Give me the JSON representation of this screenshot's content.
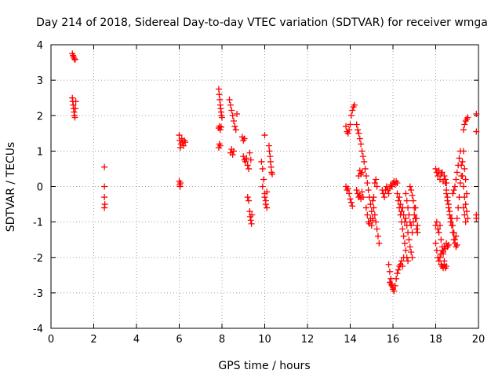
{
  "chart_data": {
    "type": "scatter",
    "title": "Day 214 of 2018, Sidereal Day-to-day VTEC variation (SDTVAR) for receiver wmga",
    "xlabel": "GPS time / hours",
    "ylabel": "SDTVAR / TECUs",
    "xlim": [
      0,
      20
    ],
    "ylim": [
      -4,
      4
    ],
    "xticks": [
      0,
      2,
      4,
      6,
      8,
      10,
      12,
      14,
      16,
      18,
      20
    ],
    "yticks": [
      -4,
      -3,
      -2,
      -1,
      0,
      1,
      2,
      3,
      4
    ],
    "grid": true,
    "marker": "+",
    "color": "#ff0000",
    "series": [
      {
        "name": "SDTVAR",
        "segments": [
          {
            "x": [
              1.0,
              1.03,
              1.06,
              1.1,
              1.13
            ],
            "y": [
              3.75,
              3.7,
              3.65,
              3.6,
              3.58
            ]
          },
          {
            "x": [
              1.0,
              1.02,
              1.04,
              1.06,
              1.08,
              1.1,
              1.12,
              1.14,
              1.16
            ],
            "y": [
              2.5,
              2.4,
              2.3,
              2.2,
              2.1,
              2.0,
              1.95,
              2.2,
              2.4
            ]
          },
          {
            "x": [
              2.5,
              2.5,
              2.5,
              2.52,
              2.5
            ],
            "y": [
              0.55,
              0.0,
              -0.3,
              -0.5,
              -0.6
            ]
          },
          {
            "x": [
              6.0,
              6.02,
              6.05,
              6.08,
              6.12,
              6.16,
              6.2,
              6.24,
              6.28
            ],
            "y": [
              1.45,
              1.3,
              1.1,
              1.2,
              1.35,
              1.25,
              1.15,
              1.3,
              1.25
            ]
          },
          {
            "x": [
              6.0,
              6.02,
              6.04,
              6.06
            ],
            "y": [
              0.15,
              0.05,
              0.0,
              0.1
            ]
          },
          {
            "x": [
              7.85,
              7.87,
              7.9,
              7.92,
              7.94,
              7.96,
              7.98,
              8.0
            ],
            "y": [
              2.75,
              2.6,
              2.45,
              2.3,
              2.2,
              2.1,
              2.0,
              1.95
            ]
          },
          {
            "x": [
              7.85,
              7.88,
              7.92,
              7.96
            ],
            "y": [
              1.65,
              1.7,
              1.6,
              1.68
            ]
          },
          {
            "x": [
              7.85,
              7.88,
              7.92
            ],
            "y": [
              1.1,
              1.2,
              1.15
            ]
          },
          {
            "x": [
              8.35,
              8.4,
              8.45,
              8.5,
              8.55,
              8.6,
              8.65,
              8.7
            ],
            "y": [
              2.45,
              2.3,
              2.15,
              2.0,
              1.85,
              1.7,
              1.6,
              2.05
            ]
          },
          {
            "x": [
              8.4,
              8.45,
              8.5,
              8.55
            ],
            "y": [
              0.95,
              1.05,
              0.9,
              1.0
            ]
          },
          {
            "x": [
              8.95,
              9.0,
              9.05
            ],
            "y": [
              1.4,
              1.3,
              1.35
            ]
          },
          {
            "x": [
              9.0,
              9.05,
              9.1,
              9.15,
              9.2,
              9.25,
              9.3,
              9.35
            ],
            "y": [
              0.85,
              0.75,
              0.7,
              0.8,
              0.6,
              0.5,
              0.95,
              0.75
            ]
          },
          {
            "x": [
              9.2,
              9.25,
              9.3,
              9.32,
              9.35,
              9.38,
              9.4
            ],
            "y": [
              -0.3,
              -0.4,
              -0.7,
              -0.85,
              -0.95,
              -1.05,
              -0.8
            ]
          },
          {
            "x": [
              9.85,
              9.9,
              9.95,
              10.0,
              10.05,
              10.1
            ],
            "y": [
              0.7,
              0.5,
              0.2,
              -0.2,
              -0.4,
              -0.6
            ]
          },
          {
            "x": [
              9.9,
              10.0,
              10.05,
              10.1
            ],
            "y": [
              0.0,
              -0.3,
              -0.5,
              -0.15
            ]
          },
          {
            "x": [
              10.0
            ],
            "y": [
              1.45
            ]
          },
          {
            "x": [
              10.2,
              10.22,
              10.25,
              10.27,
              10.3,
              10.32,
              10.35
            ],
            "y": [
              1.15,
              1.0,
              0.85,
              0.7,
              0.55,
              0.4,
              0.35
            ]
          },
          {
            "x": [
              13.8,
              13.85,
              13.9,
              13.95,
              14.0,
              14.05,
              14.1,
              14.15,
              14.2
            ],
            "y": [
              1.7,
              1.55,
              1.5,
              1.6,
              1.75,
              2.0,
              2.15,
              2.25,
              2.3
            ]
          },
          {
            "x": [
              13.8,
              13.85,
              13.9,
              13.95,
              14.0,
              14.05,
              14.1
            ],
            "y": [
              0.0,
              -0.1,
              -0.05,
              -0.2,
              -0.35,
              -0.45,
              -0.55
            ]
          },
          {
            "x": [
              14.3,
              14.35,
              14.4,
              14.45,
              14.5,
              14.55,
              14.6,
              14.65
            ],
            "y": [
              1.75,
              1.6,
              1.5,
              1.35,
              1.2,
              1.0,
              0.85,
              0.7
            ]
          },
          {
            "x": [
              14.3,
              14.35,
              14.4,
              14.45,
              14.5,
              14.55,
              14.6
            ],
            "y": [
              -0.1,
              -0.2,
              -0.3,
              -0.25,
              -0.35,
              -0.15,
              -0.3
            ]
          },
          {
            "x": [
              14.4,
              14.45,
              14.5,
              14.55
            ],
            "y": [
              0.3,
              0.45,
              0.35,
              0.4
            ]
          },
          {
            "x": [
              14.7,
              14.75,
              14.8,
              14.85,
              14.9,
              14.95,
              15.0,
              15.05,
              15.1,
              15.15,
              15.2,
              15.25
            ],
            "y": [
              0.5,
              0.3,
              0.1,
              -0.1,
              -0.3,
              -0.5,
              -0.7,
              -0.9,
              -0.3,
              0.1,
              0.2,
              0.0
            ]
          },
          {
            "x": [
              14.75,
              14.8,
              14.85,
              14.9,
              14.95,
              15.0,
              15.05
            ],
            "y": [
              -0.6,
              -0.8,
              -1.0,
              -1.05,
              -0.9,
              -1.1,
              -0.95
            ]
          },
          {
            "x": [
              15.05,
              15.1,
              15.15,
              15.2,
              15.25,
              15.3,
              15.35
            ],
            "y": [
              -0.4,
              -0.6,
              -0.8,
              -1.0,
              -1.2,
              -1.4,
              -1.6
            ]
          },
          {
            "x": [
              15.5,
              15.55,
              15.6,
              15.65,
              15.7,
              15.75,
              15.8,
              15.85,
              15.9,
              15.95,
              16.0,
              16.05,
              16.1,
              16.15,
              16.2
            ],
            "y": [
              -0.1,
              -0.2,
              -0.3,
              -0.1,
              0.0,
              -0.1,
              -0.2,
              -0.05,
              0.05,
              0.0,
              0.1,
              0.15,
              0.05,
              0.15,
              0.1
            ]
          },
          {
            "x": [
              15.8,
              15.85,
              15.9,
              15.95,
              16.0,
              16.05,
              16.1,
              16.15,
              16.2,
              16.25,
              16.3,
              16.35,
              16.4,
              16.45,
              16.5
            ],
            "y": [
              -2.2,
              -2.4,
              -2.6,
              -2.75,
              -2.85,
              -2.95,
              -2.8,
              -2.6,
              -2.45,
              -2.35,
              -2.25,
              -2.2,
              -2.1,
              -2.25,
              -2.0
            ]
          },
          {
            "x": [
              15.85,
              15.9,
              15.95,
              16.0
            ],
            "y": [
              -2.7,
              -2.75,
              -2.8,
              -2.9
            ]
          },
          {
            "x": [
              16.2,
              16.25,
              16.3,
              16.35,
              16.4,
              16.45,
              16.5,
              16.55,
              16.6,
              16.65,
              16.7
            ],
            "y": [
              -0.2,
              -0.4,
              -0.6,
              -0.8,
              -1.0,
              -1.2,
              -1.4,
              -1.6,
              -1.8,
              -2.0,
              -2.1
            ]
          },
          {
            "x": [
              16.3,
              16.35,
              16.4,
              16.45,
              16.5,
              16.55,
              16.6,
              16.65,
              16.7,
              16.75,
              16.8,
              16.85,
              16.9
            ],
            "y": [
              -0.3,
              -0.5,
              -0.7,
              -0.6,
              -0.8,
              -1.0,
              -0.9,
              -1.1,
              -1.3,
              -1.5,
              -1.7,
              -1.85,
              -2.0
            ]
          },
          {
            "x": [
              16.6,
              16.65,
              16.7,
              16.75,
              16.8,
              16.85,
              16.9,
              16.95,
              17.0,
              17.05,
              17.1,
              17.15
            ],
            "y": [
              -0.2,
              -0.4,
              -0.6,
              -0.8,
              -1.0,
              -1.1,
              -1.3,
              -1.0,
              -0.8,
              -0.6,
              -0.9,
              -1.1
            ]
          },
          {
            "x": [
              16.8,
              16.85,
              16.9,
              16.95,
              17.0,
              17.05,
              17.1,
              17.15
            ],
            "y": [
              0.0,
              -0.1,
              -0.25,
              -0.4,
              -0.6,
              -0.9,
              -1.2,
              -1.3
            ]
          },
          {
            "x": [
              18.0,
              18.05,
              18.1,
              18.15,
              18.2,
              18.25,
              18.3,
              18.35,
              18.4,
              18.45,
              18.5
            ],
            "y": [
              0.5,
              0.4,
              0.3,
              0.45,
              0.2,
              0.35,
              0.4,
              0.15,
              0.3,
              0.2,
              0.1
            ]
          },
          {
            "x": [
              18.0,
              18.05,
              18.1,
              18.15,
              18.2,
              18.25,
              18.3,
              18.35,
              18.4,
              18.45,
              18.5,
              18.55,
              18.6
            ],
            "y": [
              -1.6,
              -1.8,
              -2.0,
              -2.1,
              -2.0,
              -1.9,
              -1.8,
              -1.85,
              -1.7,
              -1.75,
              -1.6,
              -1.7,
              -1.65
            ]
          },
          {
            "x": [
              18.0,
              18.05,
              18.1,
              18.15,
              18.2,
              18.25,
              18.3,
              18.35,
              18.4
            ],
            "y": [
              -1.1,
              -1.0,
              -1.2,
              -1.3,
              -1.1,
              -1.5,
              -1.7,
              -1.9,
              -2.1
            ]
          },
          {
            "x": [
              18.25,
              18.3,
              18.35,
              18.4,
              18.45,
              18.5
            ],
            "y": [
              -2.2,
              -2.25,
              -2.3,
              -2.2,
              -2.3,
              -2.25
            ]
          },
          {
            "x": [
              18.45,
              18.5,
              18.55,
              18.6,
              18.65,
              18.7,
              18.75,
              18.8,
              18.85,
              18.9,
              18.95,
              19.0
            ],
            "y": [
              0.1,
              -0.1,
              -0.3,
              -0.5,
              -0.7,
              -0.9,
              -1.1,
              -1.3,
              -1.5,
              -1.6,
              -1.7,
              -1.65
            ]
          },
          {
            "x": [
              18.5,
              18.55,
              18.6,
              18.65,
              18.7,
              18.75,
              18.8,
              18.85,
              18.9,
              18.95
            ],
            "y": [
              -0.2,
              -0.4,
              -0.6,
              -0.8,
              -1.0,
              -0.9,
              -1.1,
              -1.3,
              -1.5,
              -1.4
            ]
          },
          {
            "x": [
              18.8,
              18.85,
              18.9,
              18.95,
              19.0,
              19.05,
              19.1,
              19.15,
              19.2,
              19.25,
              19.3,
              19.35,
              19.4
            ],
            "y": [
              -0.2,
              -0.1,
              0.0,
              0.2,
              0.4,
              0.6,
              0.8,
              1.0,
              0.6,
              0.3,
              0.0,
              -0.3,
              -0.5
            ]
          },
          {
            "x": [
              19.0,
              19.05,
              19.1,
              19.15,
              19.2,
              19.25,
              19.3,
              19.35,
              19.4,
              19.45
            ],
            "y": [
              -0.9,
              -0.6,
              -0.3,
              0.1,
              0.3,
              0.7,
              1.0,
              0.5,
              0.2,
              -0.2
            ]
          },
          {
            "x": [
              19.3,
              19.35,
              19.4,
              19.45,
              19.5
            ],
            "y": [
              1.6,
              1.75,
              1.85,
              1.9,
              1.95
            ]
          },
          {
            "x": [
              19.3,
              19.35,
              19.4,
              19.45,
              19.5
            ],
            "y": [
              -0.6,
              -0.8,
              -1.0,
              -0.7,
              -0.9
            ]
          },
          {
            "x": [
              19.9,
              19.9,
              19.9,
              19.9
            ],
            "y": [
              2.05,
              1.55,
              -0.8,
              -0.9
            ]
          }
        ]
      }
    ]
  }
}
